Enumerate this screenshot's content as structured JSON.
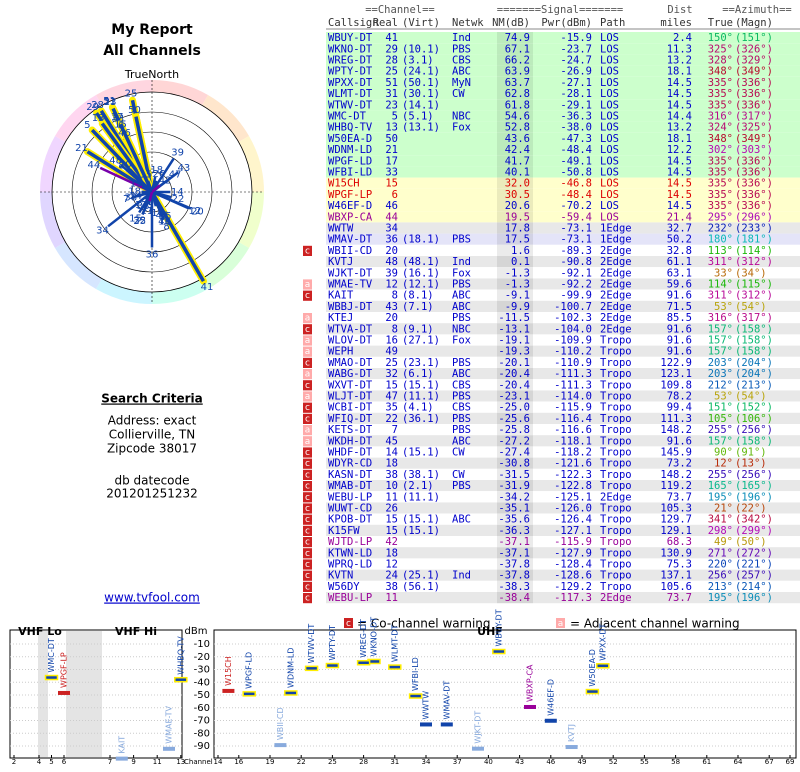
{
  "header": {
    "title": "My Report",
    "subtitle": "All Channels"
  },
  "polar": {
    "north_label": "TrueNorth",
    "n": "N"
  },
  "search": {
    "heading": "Search Criteria",
    "lines": [
      "Address: exact",
      "Collierville, TN",
      "Zipcode 38017"
    ],
    "datecode_label": "db datecode",
    "datecode": "201201251232"
  },
  "link": "www.tvfool.com",
  "table": {
    "groups": [
      "==Channel==",
      "=======Signal=======",
      "Dist",
      "==Azimuth=="
    ],
    "columns": [
      "Callsign",
      "Real",
      "(Virt)",
      "Netwk",
      "NM(dB)",
      "Pwr(dBm)",
      "Path",
      "miles",
      "True",
      "(Magn)"
    ],
    "rows": [
      {
        "cells": [
          "WBUY-DT",
          "41",
          null,
          "Ind",
          "74.9",
          "-15.9",
          "LOS",
          "2.4",
          "150°",
          "(151°)"
        ],
        "color": "#0000cc",
        "bg": "#ccffcc"
      },
      {
        "cells": [
          "WKNO-DT",
          "29",
          "(10.1)",
          "PBS",
          "67.1",
          "-23.7",
          "LOS",
          "11.3",
          "325°",
          "(326°)"
        ],
        "color": "#0000cc",
        "bg": "#ccffcc"
      },
      {
        "cells": [
          "WREG-DT",
          "28",
          "(3.1)",
          "CBS",
          "66.2",
          "-24.7",
          "LOS",
          "13.2",
          "328°",
          "(329°)"
        ],
        "color": "#0000cc",
        "bg": "#ccffcc"
      },
      {
        "cells": [
          "WPTY-DT",
          "25",
          "(24.1)",
          "ABC",
          "63.9",
          "-26.9",
          "LOS",
          "18.1",
          "348°",
          "(349°)"
        ],
        "color": "#0000cc",
        "bg": "#ccffcc"
      },
      {
        "cells": [
          "WPXX-DT",
          "51",
          "(50.1)",
          "MyN",
          "63.7",
          "-27.1",
          "LOS",
          "14.5",
          "335°",
          "(336°)"
        ],
        "color": "#0000cc",
        "bg": "#ccffcc"
      },
      {
        "cells": [
          "WLMT-DT",
          "31",
          "(30.1)",
          "CW",
          "62.8",
          "-28.1",
          "LOS",
          "14.5",
          "335°",
          "(336°)"
        ],
        "color": "#0000cc",
        "bg": "#ccffcc"
      },
      {
        "cells": [
          "WTWV-DT",
          "23",
          "(14.1)",
          null,
          "61.8",
          "-29.1",
          "LOS",
          "14.5",
          "335°",
          "(336°)"
        ],
        "color": "#0000cc",
        "bg": "#ccffcc"
      },
      {
        "cells": [
          "WMC-DT",
          "5",
          "(5.1)",
          "NBC",
          "54.6",
          "-36.3",
          "LOS",
          "14.4",
          "316°",
          "(317°)"
        ],
        "color": "#0000cc",
        "bg": "#ccffcc"
      },
      {
        "cells": [
          "WHBQ-TV",
          "13",
          "(13.1)",
          "Fox",
          "52.8",
          "-38.0",
          "LOS",
          "13.2",
          "324°",
          "(325°)"
        ],
        "color": "#0000cc",
        "bg": "#ccffcc"
      },
      {
        "cells": [
          "W50EA-D",
          "50",
          null,
          null,
          "43.6",
          "-47.3",
          "LOS",
          "18.1",
          "348°",
          "(349°)"
        ],
        "color": "#0000cc",
        "bg": "#ccffcc"
      },
      {
        "cells": [
          "WDNM-LD",
          "21",
          null,
          null,
          "42.4",
          "-48.4",
          "LOS",
          "12.2",
          "302°",
          "(303°)"
        ],
        "color": "#0000cc",
        "bg": "#ccffcc"
      },
      {
        "cells": [
          "WPGF-LD",
          "17",
          null,
          null,
          "41.7",
          "-49.1",
          "LOS",
          "14.5",
          "335°",
          "(336°)"
        ],
        "color": "#0000cc",
        "bg": "#ccffcc"
      },
      {
        "cells": [
          "WFBI-LD",
          "33",
          null,
          null,
          "40.1",
          "-50.8",
          "LOS",
          "14.5",
          "335°",
          "(336°)"
        ],
        "color": "#0000cc",
        "bg": "#ccffcc"
      },
      {
        "cells": [
          "W15CH",
          "15",
          null,
          null,
          "32.0",
          "-46.8",
          "LOS",
          "14.5",
          "335°",
          "(336°)"
        ],
        "color": "#dd0000",
        "bg": "#ffffcc"
      },
      {
        "cells": [
          "WPGF-LP",
          "6",
          null,
          null,
          "30.5",
          "-48.4",
          "LOS",
          "14.5",
          "335°",
          "(336°)"
        ],
        "color": "#dd0000",
        "bg": "#ffffcc"
      },
      {
        "cells": [
          "W46EF-D",
          "46",
          null,
          null,
          "20.6",
          "-70.2",
          "LOS",
          "14.5",
          "335°",
          "(336°)"
        ],
        "color": "#0000cc",
        "bg": "#ffffcc"
      },
      {
        "cells": [
          "WBXP-CA",
          "44",
          null,
          null,
          "19.5",
          "-59.4",
          "LOS",
          "21.4",
          "295°",
          "(296°)"
        ],
        "color": "#990099",
        "bg": "#ffffcc"
      },
      {
        "cells": [
          "WWTW",
          "34",
          null,
          null,
          "17.8",
          "-73.1",
          "1Edge",
          "32.7",
          "232°",
          "(233°)"
        ],
        "color": "#0000cc",
        "bg": "#e8e8e8"
      },
      {
        "cells": [
          "WMAV-DT",
          "36",
          "(18.1)",
          "PBS",
          "17.5",
          "-73.1",
          "1Edge",
          "50.2",
          "180°",
          "(181°)"
        ],
        "color": "#0000cc",
        "bg": "#e4e4f8"
      },
      {
        "cells": [
          "WBII-CD",
          "20",
          null,
          null,
          "1.6",
          "-89.3",
          "2Edge",
          "32.8",
          "113°",
          "(114°)"
        ],
        "color": "#0000cc",
        "warn": "c"
      },
      {
        "cells": [
          "KVTJ",
          "48",
          "(48.1)",
          "Ind",
          "0.1",
          "-90.8",
          "2Edge",
          "61.1",
          "311°",
          "(312°)"
        ],
        "color": "#0000cc"
      },
      {
        "cells": [
          "WJKT-DT",
          "39",
          "(16.1)",
          "Fox",
          "-1.3",
          "-92.1",
          "2Edge",
          "63.1",
          "33°",
          "(34°)"
        ],
        "color": "#0000cc"
      },
      {
        "cells": [
          "WMAE-TV",
          "12",
          "(12.1)",
          "PBS",
          "-1.3",
          "-92.2",
          "2Edge",
          "59.6",
          "114°",
          "(115°)"
        ],
        "color": "#0000cc",
        "warn": "a"
      },
      {
        "cells": [
          "KAIT",
          "8",
          "(8.1)",
          "ABC",
          "-9.1",
          "-99.9",
          "2Edge",
          "91.6",
          "311°",
          "(312°)"
        ],
        "color": "#0000cc",
        "warn": "c"
      },
      {
        "cells": [
          "WBBJ-DT",
          "43",
          "(7.1)",
          "ABC",
          "-9.9",
          "-100.7",
          "2Edge",
          "71.5",
          "53°",
          "(54°)"
        ],
        "color": "#0000cc"
      },
      {
        "cells": [
          "KTEJ",
          "20",
          null,
          "PBS",
          "-11.5",
          "-102.3",
          "2Edge",
          "85.5",
          "316°",
          "(317°)"
        ],
        "color": "#0000cc",
        "warn": "a"
      },
      {
        "cells": [
          "WTVA-DT",
          "8",
          "(9.1)",
          "NBC",
          "-13.1",
          "-104.0",
          "2Edge",
          "91.6",
          "157°",
          "(158°)"
        ],
        "color": "#0000cc",
        "warn": "c"
      },
      {
        "cells": [
          "WLOV-DT",
          "16",
          "(27.1)",
          "Fox",
          "-19.1",
          "-109.9",
          "Tropo",
          "91.6",
          "157°",
          "(158°)"
        ],
        "color": "#0000cc",
        "warn": "a"
      },
      {
        "cells": [
          "WEPH",
          "49",
          null,
          null,
          "-19.3",
          "-110.2",
          "Tropo",
          "91.6",
          "157°",
          "(158°)"
        ],
        "color": "#0000cc",
        "warn": "a"
      },
      {
        "cells": [
          "WMAO-DT",
          "25",
          "(23.1)",
          "PBS",
          "-20.1",
          "-110.9",
          "Tropo",
          "122.9",
          "203°",
          "(204°)"
        ],
        "color": "#0000cc",
        "warn": "c"
      },
      {
        "cells": [
          "WABG-DT",
          "32",
          "(6.1)",
          "ABC",
          "-20.4",
          "-111.3",
          "Tropo",
          "123.1",
          "203°",
          "(204°)"
        ],
        "color": "#0000cc",
        "warn": "a"
      },
      {
        "cells": [
          "WXVT-DT",
          "15",
          "(15.1)",
          "CBS",
          "-20.4",
          "-111.3",
          "Tropo",
          "109.8",
          "212°",
          "(213°)"
        ],
        "color": "#0000cc",
        "warn": "c"
      },
      {
        "cells": [
          "WLJT-DT",
          "47",
          "(11.1)",
          "PBS",
          "-23.1",
          "-114.0",
          "Tropo",
          "78.2",
          "53°",
          "(54°)"
        ],
        "color": "#0000cc",
        "warn": "a"
      },
      {
        "cells": [
          "WCBI-DT",
          "35",
          "(4.1)",
          "CBS",
          "-25.0",
          "-115.9",
          "Tropo",
          "99.4",
          "151°",
          "(152°)"
        ],
        "color": "#0000cc",
        "warn": "c"
      },
      {
        "cells": [
          "WFIQ-DT",
          "22",
          "(36.1)",
          "PBS",
          "-25.6",
          "-116.4",
          "Tropo",
          "111.3",
          "105°",
          "(106°)"
        ],
        "color": "#0000cc",
        "warn": "c"
      },
      {
        "cells": [
          "KETS-DT",
          "7",
          null,
          "PBS",
          "-25.8",
          "-116.6",
          "Tropo",
          "148.2",
          "255°",
          "(256°)"
        ],
        "color": "#0000cc",
        "warn": "a"
      },
      {
        "cells": [
          "WKDH-DT",
          "45",
          null,
          "ABC",
          "-27.2",
          "-118.1",
          "Tropo",
          "91.6",
          "157°",
          "(158°)"
        ],
        "color": "#0000cc",
        "warn": "a"
      },
      {
        "cells": [
          "WHDF-DT",
          "14",
          "(15.1)",
          "CW",
          "-27.4",
          "-118.2",
          "Tropo",
          "145.9",
          "90°",
          "(91°)"
        ],
        "color": "#0000cc",
        "warn": "c"
      },
      {
        "cells": [
          "WDYR-CD",
          "18",
          null,
          null,
          "-30.8",
          "-121.6",
          "Tropo",
          "73.2",
          "12°",
          "(13°)"
        ],
        "color": "#0000cc",
        "warn": "c"
      },
      {
        "cells": [
          "KASN-DT",
          "38",
          "(38.1)",
          "CW",
          "-31.5",
          "-122.3",
          "Tropo",
          "148.2",
          "255°",
          "(256°)"
        ],
        "color": "#0000cc",
        "warn": "c"
      },
      {
        "cells": [
          "WMAB-DT",
          "10",
          "(2.1)",
          "PBS",
          "-31.9",
          "-122.8",
          "Tropo",
          "119.2",
          "165°",
          "(165°)"
        ],
        "color": "#0000cc",
        "warn": "c"
      },
      {
        "cells": [
          "WEBU-LP",
          "11",
          "(11.1)",
          null,
          "-34.2",
          "-125.1",
          "2Edge",
          "73.7",
          "195°",
          "(196°)"
        ],
        "color": "#0000cc",
        "warn": "c"
      },
      {
        "cells": [
          "WUWT-CD",
          "26",
          null,
          null,
          "-35.1",
          "-126.0",
          "Tropo",
          "105.3",
          "21°",
          "(22°)"
        ],
        "color": "#0000cc",
        "warn": "c"
      },
      {
        "cells": [
          "KPOB-DT",
          "15",
          "(15.1)",
          "ABC",
          "-35.6",
          "-126.4",
          "Tropo",
          "129.7",
          "341°",
          "(342°)"
        ],
        "color": "#0000cc",
        "warn": "c"
      },
      {
        "cells": [
          "K15FW",
          "15",
          "(15.1)",
          null,
          "-36.3",
          "-127.1",
          "Tropo",
          "129.1",
          "298°",
          "(299°)"
        ],
        "color": "#0000cc",
        "warn": "c"
      },
      {
        "cells": [
          "WJTD-LP",
          "42",
          null,
          null,
          "-37.1",
          "-115.9",
          "Tropo",
          "68.3",
          "49°",
          "(50°)"
        ],
        "color": "#990099",
        "warn": "c"
      },
      {
        "cells": [
          "KTWN-LD",
          "18",
          null,
          null,
          "-37.1",
          "-127.9",
          "Tropo",
          "130.9",
          "271°",
          "(272°)"
        ],
        "color": "#0000cc",
        "warn": "c"
      },
      {
        "cells": [
          "WPRQ-LD",
          "12",
          null,
          null,
          "-37.8",
          "-128.4",
          "Tropo",
          "75.3",
          "220°",
          "(221°)"
        ],
        "color": "#0000cc",
        "warn": "c"
      },
      {
        "cells": [
          "KVTN",
          "24",
          "(25.1)",
          "Ind",
          "-37.8",
          "-128.6",
          "Tropo",
          "137.1",
          "256°",
          "(257°)"
        ],
        "color": "#0000cc",
        "warn": "c"
      },
      {
        "cells": [
          "W56DY",
          "38",
          "(56.1)",
          null,
          "-38.3",
          "-129.2",
          "Tropo",
          "105.6",
          "213°",
          "(214°)"
        ],
        "color": "#0000cc",
        "warn": "c"
      },
      {
        "cells": [
          "WEBU-LP",
          "11",
          null,
          null,
          "-38.4",
          "-117.3",
          "2Edge",
          "73.7",
          "195°",
          "(196°)"
        ],
        "color": "#990099",
        "warn": "c"
      }
    ]
  },
  "legend": {
    "co_mark": "c",
    "co": "= Co-channel warning",
    "adj_mark": "a",
    "adj": "= Adjacent channel warning"
  },
  "spectrum": {
    "bands": [
      "VHF Lo",
      "VHF Hi",
      "UHF"
    ],
    "y_label": "dBm",
    "x_label": "Channel",
    "yticks": [
      -10,
      -20,
      -30,
      -40,
      -50,
      -60,
      -70,
      -80,
      -90
    ],
    "vhf_ticks": [
      2,
      4,
      5,
      6,
      7,
      9,
      11,
      13
    ],
    "uhf_ticks": [
      14,
      16,
      19,
      22,
      25,
      28,
      31,
      34,
      37,
      40,
      43,
      46,
      49,
      52,
      55,
      58,
      61,
      64,
      67,
      69
    ]
  }
}
